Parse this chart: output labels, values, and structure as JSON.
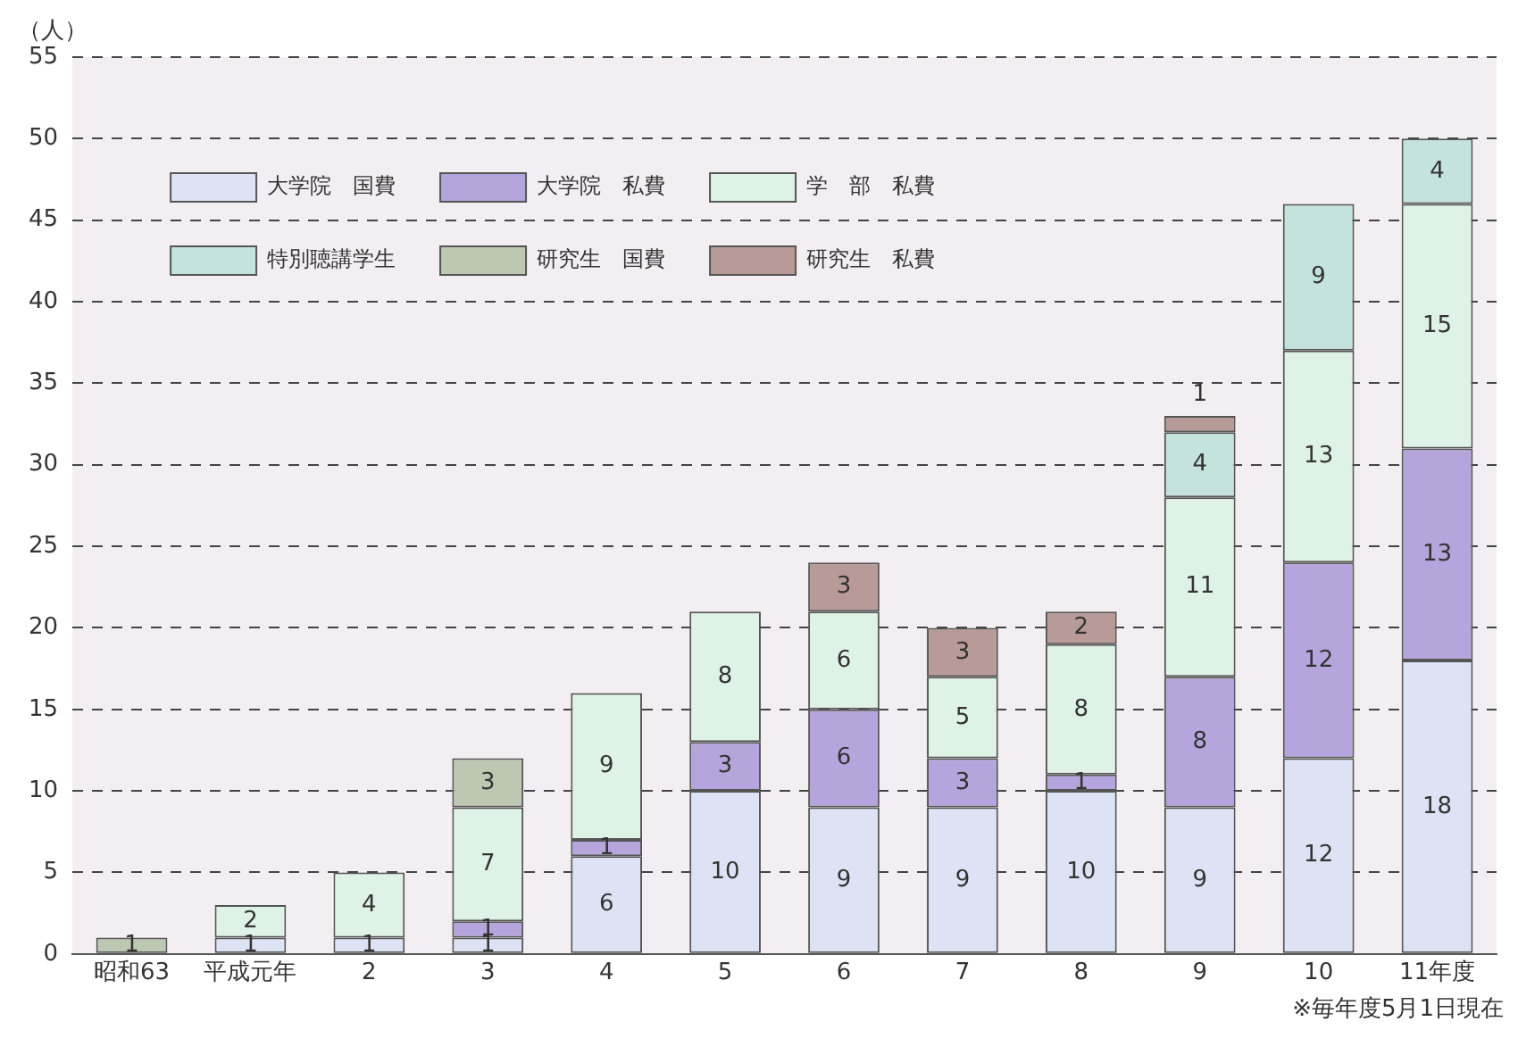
{
  "chart_data": {
    "type": "bar",
    "stacked": true,
    "ylabel": "（人）",
    "annotations": [
      "※毎年度5月1日現在"
    ],
    "categories": [
      "昭和63",
      "平成元年",
      "2",
      "3",
      "4",
      "5",
      "6",
      "7",
      "8",
      "9",
      "10",
      "11年度"
    ],
    "series": [
      {
        "name": "大学院　国費",
        "color": "#dde3f5",
        "values": [
          null,
          1,
          1,
          1,
          6,
          10,
          9,
          9,
          10,
          9,
          12,
          18
        ]
      },
      {
        "name": "大学院　私費",
        "color": "#b5a5dc",
        "values": [
          null,
          null,
          null,
          1,
          1,
          3,
          6,
          3,
          1,
          8,
          12,
          13
        ]
      },
      {
        "name": "学　部　私費",
        "color": "#dff2e6",
        "values": [
          null,
          2,
          4,
          7,
          9,
          8,
          6,
          5,
          8,
          11,
          13,
          15
        ]
      },
      {
        "name": "特別聴講学生",
        "color": "#c4e3df",
        "values": [
          null,
          null,
          null,
          null,
          null,
          null,
          null,
          null,
          null,
          4,
          9,
          4
        ]
      },
      {
        "name": "研究生　国費",
        "color": "#bdc8b3",
        "values": [
          1,
          null,
          null,
          3,
          null,
          null,
          null,
          null,
          null,
          null,
          null,
          null
        ]
      },
      {
        "name": "研究生　私費",
        "color": "#b89a98",
        "values": [
          null,
          null,
          null,
          null,
          null,
          null,
          3,
          3,
          2,
          1,
          null,
          null
        ]
      }
    ],
    "ylim": [
      0,
      55
    ],
    "yticks": [
      0,
      5,
      10,
      15,
      20,
      25,
      30,
      35,
      40,
      45,
      50,
      55
    ],
    "grid": "y",
    "legend": "top left",
    "data_labels": true
  }
}
